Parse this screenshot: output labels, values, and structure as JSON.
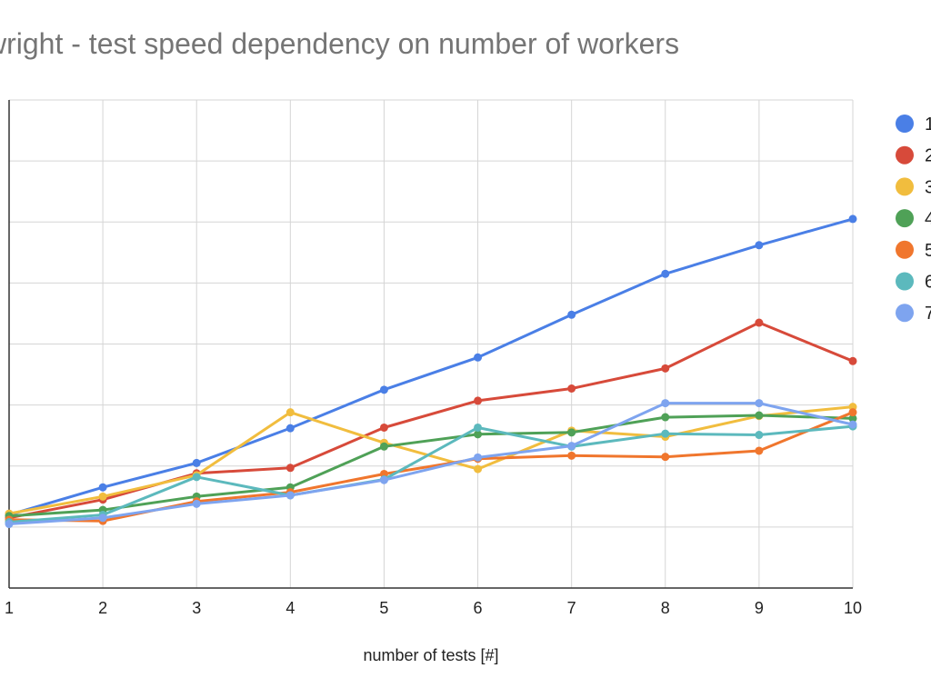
{
  "chart_data": {
    "type": "line",
    "title": "wright - test speed dependency on number of workers",
    "xlabel": "number of tests [#]",
    "ylabel": "",
    "x": [
      1,
      2,
      3,
      4,
      5,
      6,
      7,
      8,
      9,
      10
    ],
    "ylim": [
      0,
      8
    ],
    "grid": true,
    "legend_position": "right",
    "series": [
      {
        "name": "1",
        "color": "#4a7fe6",
        "values": [
          1.2,
          1.65,
          2.05,
          2.62,
          3.25,
          3.78,
          4.48,
          5.15,
          5.62,
          6.05
        ]
      },
      {
        "name": "2",
        "color": "#d74a3a",
        "values": [
          1.15,
          1.45,
          1.88,
          1.97,
          2.63,
          3.07,
          3.27,
          3.6,
          4.35,
          3.72
        ]
      },
      {
        "name": "3",
        "color": "#f1bd3e",
        "values": [
          1.22,
          1.5,
          1.85,
          2.88,
          2.38,
          1.95,
          2.58,
          2.48,
          2.82,
          2.97
        ]
      },
      {
        "name": "4",
        "color": "#4fa157",
        "values": [
          1.18,
          1.28,
          1.5,
          1.65,
          2.32,
          2.52,
          2.55,
          2.8,
          2.83,
          2.78
        ]
      },
      {
        "name": "5",
        "color": "#f0762d",
        "values": [
          1.12,
          1.1,
          1.42,
          1.57,
          1.87,
          2.12,
          2.17,
          2.15,
          2.25,
          2.88
        ]
      },
      {
        "name": "6",
        "color": "#5cb9bd",
        "values": [
          1.08,
          1.2,
          1.82,
          1.52,
          1.78,
          2.63,
          2.32,
          2.53,
          2.51,
          2.65
        ]
      },
      {
        "name": "7",
        "color": "#7ea4ef",
        "values": [
          1.05,
          1.15,
          1.38,
          1.52,
          1.77,
          2.14,
          2.33,
          3.03,
          3.03,
          2.68
        ]
      }
    ]
  }
}
